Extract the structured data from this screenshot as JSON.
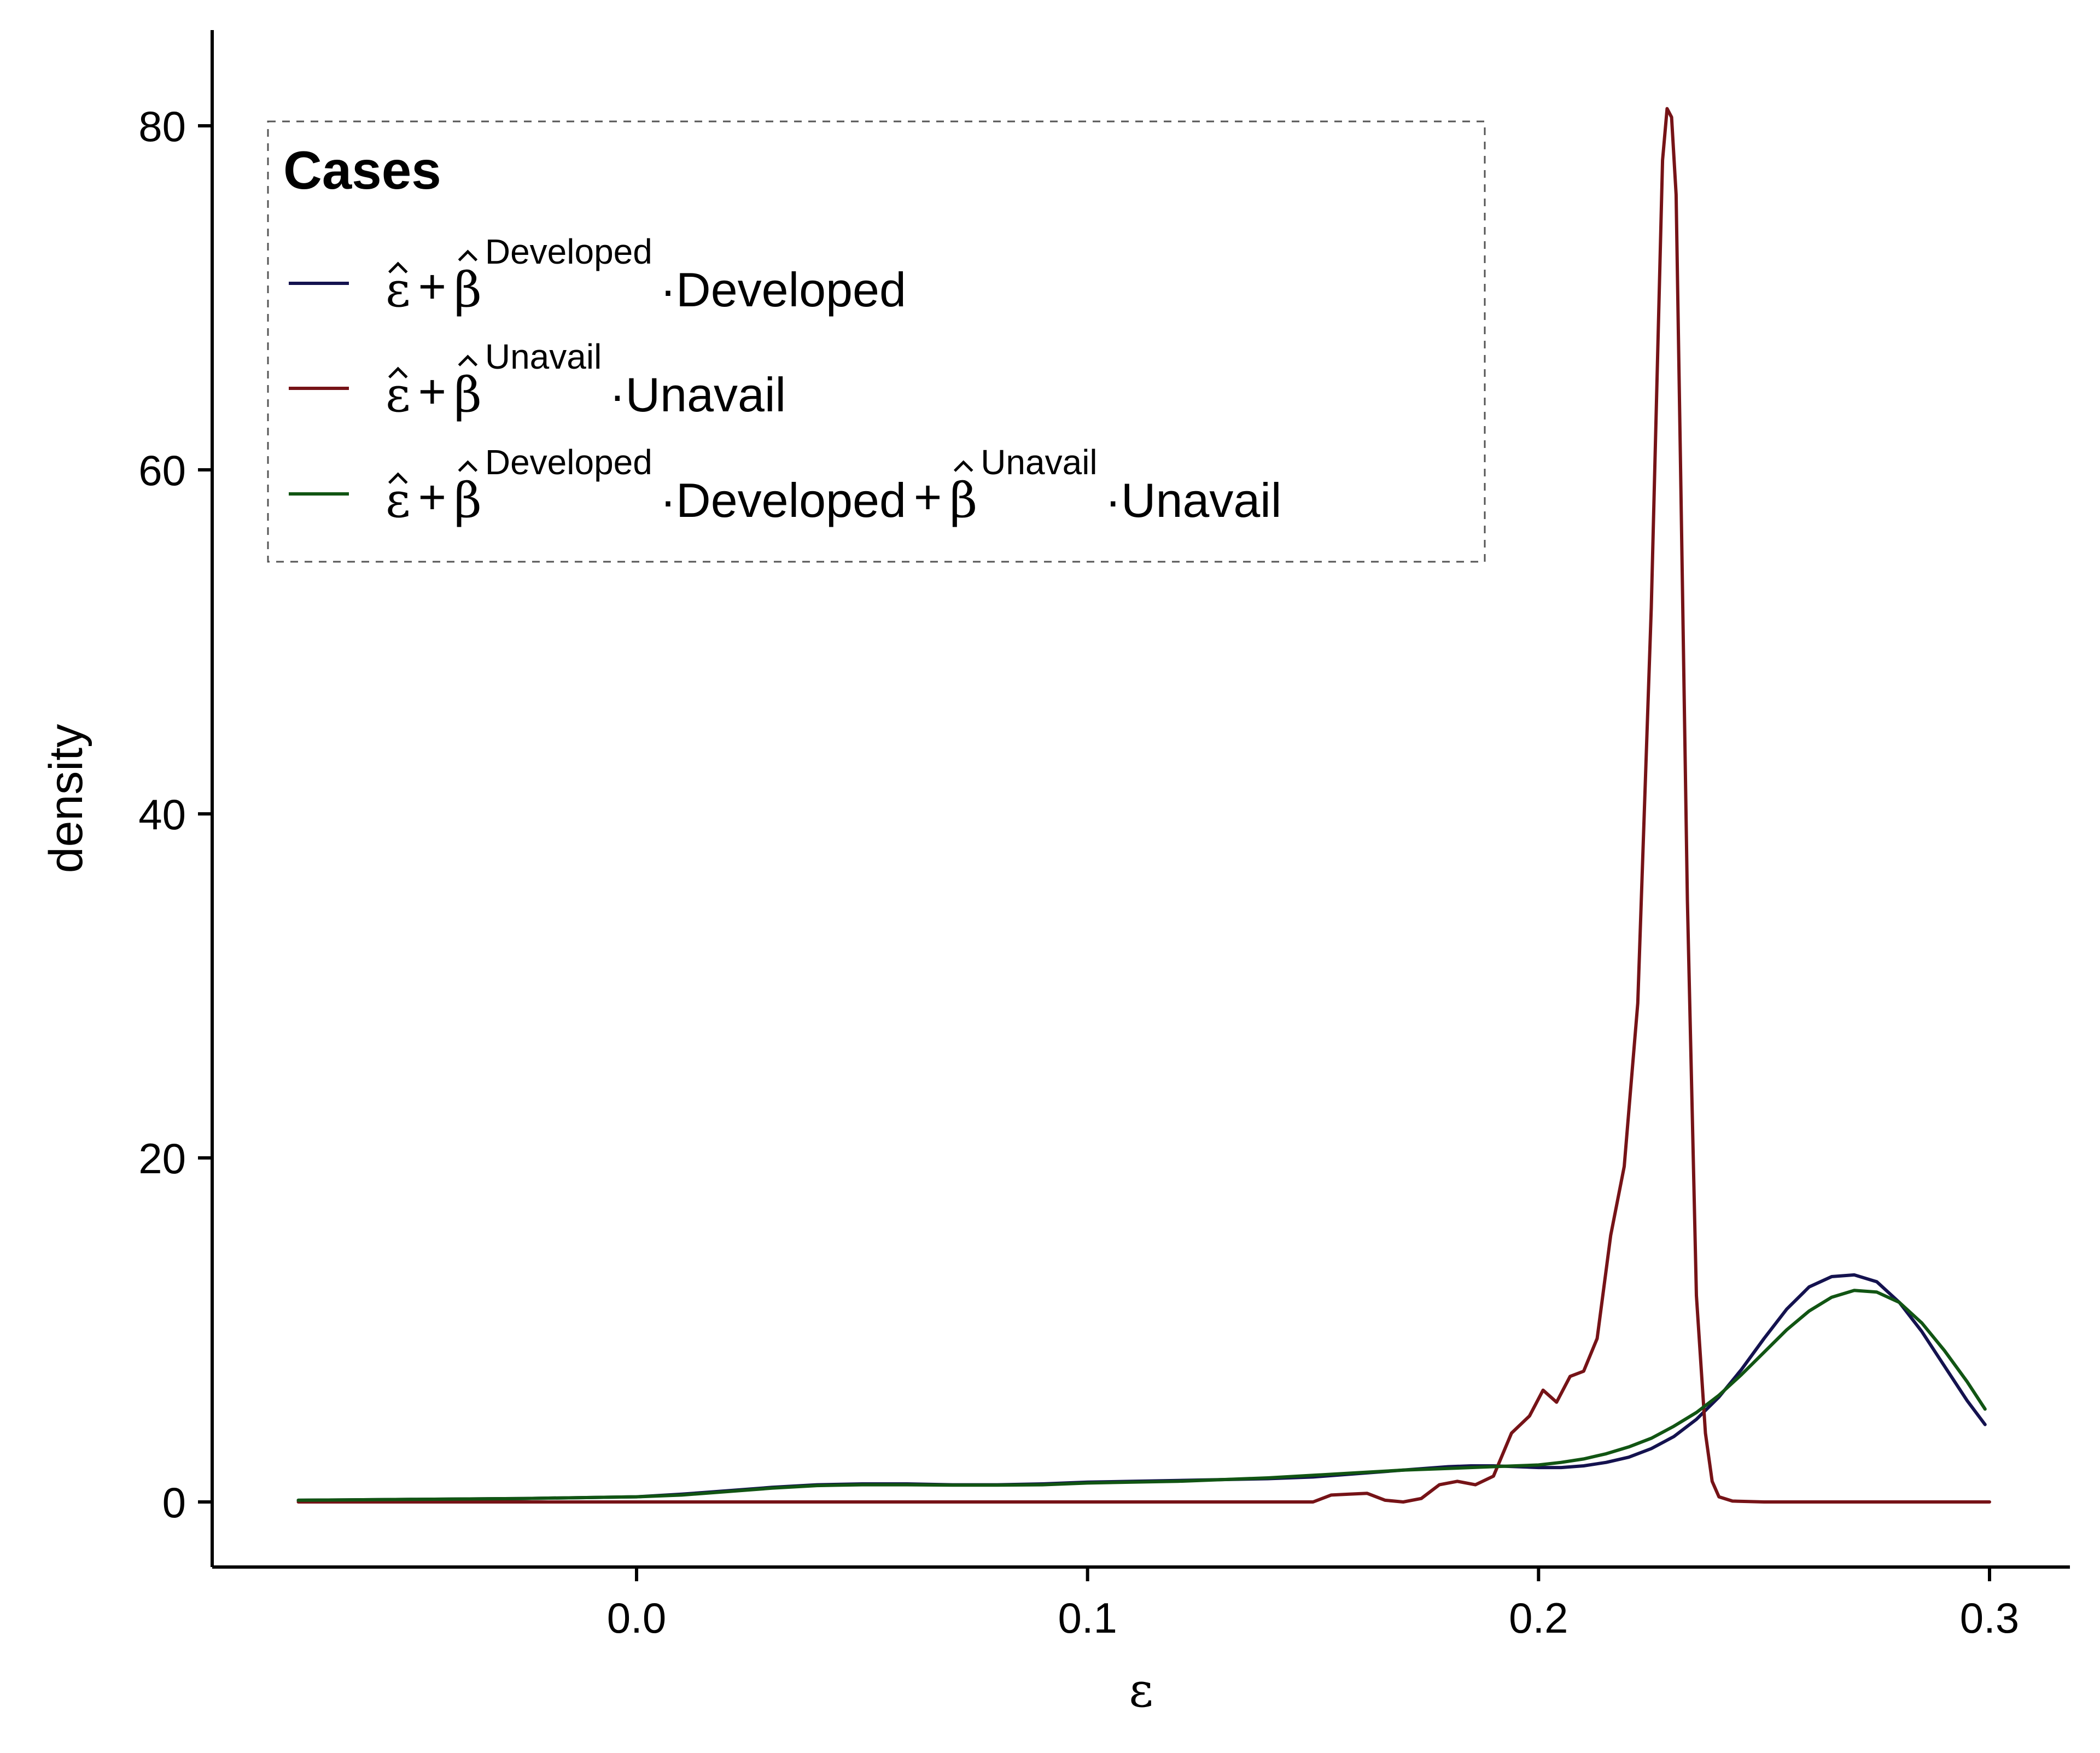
{
  "chart_data": {
    "type": "line",
    "title": "",
    "xlabel": "ε",
    "ylabel": "density",
    "xlim": [
      -0.075,
      0.315
    ],
    "ylim": [
      -4,
      85
    ],
    "x_ticks": [
      0.0,
      0.1,
      0.2,
      0.3
    ],
    "x_tick_labels": [
      "0.0",
      "0.1",
      "0.2",
      "0.3"
    ],
    "y_ticks": [
      0,
      20,
      40,
      60,
      80
    ],
    "y_tick_labels": [
      "0",
      "20",
      "40",
      "60",
      "80"
    ],
    "grid": false,
    "legend": {
      "title": "Cases",
      "placement": "top-left",
      "border": "dashed"
    },
    "series": [
      {
        "name": "ε̂ + β̂^Developed · Developed",
        "color": "#14124f",
        "legend_parts": [
          "ε",
          "+",
          "β",
          "Developed",
          "·Developed"
        ],
        "x": [
          -0.075,
          -0.05,
          -0.025,
          0.0,
          0.01,
          0.02,
          0.03,
          0.04,
          0.05,
          0.06,
          0.07,
          0.08,
          0.09,
          0.1,
          0.11,
          0.12,
          0.13,
          0.14,
          0.15,
          0.16,
          0.17,
          0.18,
          0.185,
          0.19,
          0.195,
          0.2,
          0.205,
          0.21,
          0.215,
          0.22,
          0.225,
          0.23,
          0.235,
          0.24,
          0.245,
          0.25,
          0.255,
          0.26,
          0.265,
          0.27,
          0.275,
          0.28,
          0.285,
          0.29,
          0.295,
          0.299
        ],
        "y": [
          0.1,
          0.15,
          0.2,
          0.3,
          0.45,
          0.65,
          0.85,
          1.0,
          1.05,
          1.05,
          1.0,
          1.0,
          1.05,
          1.15,
          1.2,
          1.25,
          1.3,
          1.35,
          1.45,
          1.65,
          1.85,
          2.05,
          2.1,
          2.1,
          2.05,
          2.0,
          2.0,
          2.1,
          2.3,
          2.6,
          3.1,
          3.8,
          4.8,
          6.1,
          7.7,
          9.5,
          11.2,
          12.5,
          13.1,
          13.2,
          12.8,
          11.6,
          9.9,
          7.9,
          5.9,
          4.5
        ]
      },
      {
        "name": "ε̂ + β̂^Unavail · Unavail",
        "color": "#761317",
        "legend_parts": [
          "ε",
          "+",
          "β",
          "Unavail",
          "·Unavail"
        ],
        "x": [
          -0.075,
          0.0,
          0.1,
          0.15,
          0.154,
          0.158,
          0.162,
          0.166,
          0.17,
          0.174,
          0.178,
          0.182,
          0.186,
          0.19,
          0.194,
          0.198,
          0.201,
          0.204,
          0.207,
          0.21,
          0.213,
          0.216,
          0.219,
          0.222,
          0.225,
          0.2275,
          0.2285,
          0.2295,
          0.2305,
          0.2315,
          0.233,
          0.235,
          0.237,
          0.2385,
          0.24,
          0.243,
          0.25,
          0.3
        ],
        "y": [
          0,
          0,
          0,
          0,
          0.4,
          0.45,
          0.5,
          0.1,
          0,
          0.2,
          1.0,
          1.2,
          1.0,
          1.5,
          4.0,
          5.0,
          6.5,
          5.8,
          7.3,
          7.6,
          9.5,
          15.5,
          19.5,
          29.0,
          52.0,
          78.0,
          81.0,
          80.5,
          76.0,
          60.0,
          35.0,
          12.0,
          4.0,
          1.2,
          0.3,
          0.05,
          0,
          0
        ]
      },
      {
        "name": "ε̂ + β̂^Developed · Developed + β̂^Unavail · Unavail",
        "color": "#115513",
        "legend_parts": [
          "ε",
          "+",
          "β",
          "Developed",
          "·Developed",
          "+",
          "β",
          "Unavail",
          "·Unavail"
        ],
        "x": [
          -0.075,
          -0.05,
          -0.025,
          0.0,
          0.01,
          0.02,
          0.03,
          0.04,
          0.05,
          0.06,
          0.07,
          0.08,
          0.09,
          0.1,
          0.11,
          0.12,
          0.13,
          0.14,
          0.15,
          0.16,
          0.17,
          0.18,
          0.19,
          0.2,
          0.205,
          0.21,
          0.215,
          0.22,
          0.225,
          0.23,
          0.235,
          0.24,
          0.245,
          0.25,
          0.255,
          0.26,
          0.265,
          0.27,
          0.275,
          0.28,
          0.285,
          0.29,
          0.295,
          0.299
        ],
        "y": [
          0.1,
          0.15,
          0.2,
          0.3,
          0.4,
          0.6,
          0.8,
          0.95,
          1.0,
          1.0,
          0.98,
          0.98,
          1.0,
          1.1,
          1.15,
          1.2,
          1.3,
          1.4,
          1.55,
          1.7,
          1.85,
          1.95,
          2.05,
          2.15,
          2.3,
          2.5,
          2.8,
          3.2,
          3.7,
          4.4,
          5.2,
          6.2,
          7.4,
          8.7,
          10.0,
          11.1,
          11.9,
          12.3,
          12.2,
          11.6,
          10.4,
          8.8,
          7.0,
          5.4
        ]
      }
    ]
  }
}
